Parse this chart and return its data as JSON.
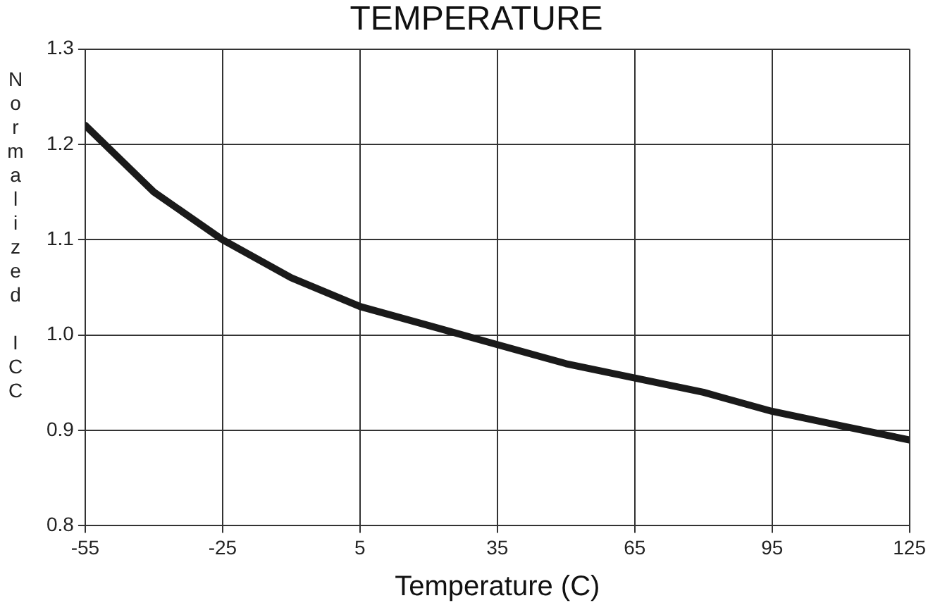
{
  "chart_data": {
    "type": "line",
    "title": "TEMPERATURE",
    "xlabel": "Temperature (C)",
    "ylabel": "Normalized ICC",
    "x": [
      -55,
      -40,
      -25,
      -10,
      5,
      20,
      35,
      50,
      65,
      80,
      95,
      110,
      125
    ],
    "series": [
      {
        "color": "#1a1a1a",
        "values": [
          1.22,
          1.15,
          1.1,
          1.06,
          1.03,
          1.01,
          0.99,
          0.97,
          0.955,
          0.94,
          0.92,
          0.905,
          0.89
        ]
      }
    ],
    "xlim": [
      -55,
      125
    ],
    "xticks": [
      -55,
      -25,
      5,
      35,
      65,
      95,
      125
    ],
    "ylim": [
      0.8,
      1.3
    ],
    "yticks": [
      {
        "value": 0.8,
        "label": "0.8"
      },
      {
        "value": 0.9,
        "label": "0.9"
      },
      {
        "value": 1.0,
        "label": "1.0"
      },
      {
        "value": 1.1,
        "label": "1.1"
      },
      {
        "value": 1.2,
        "label": "1.2"
      },
      {
        "value": 1.3,
        "label": "1.3"
      }
    ],
    "grid": true,
    "legend": false,
    "marker": "none",
    "line_style": "solid"
  }
}
